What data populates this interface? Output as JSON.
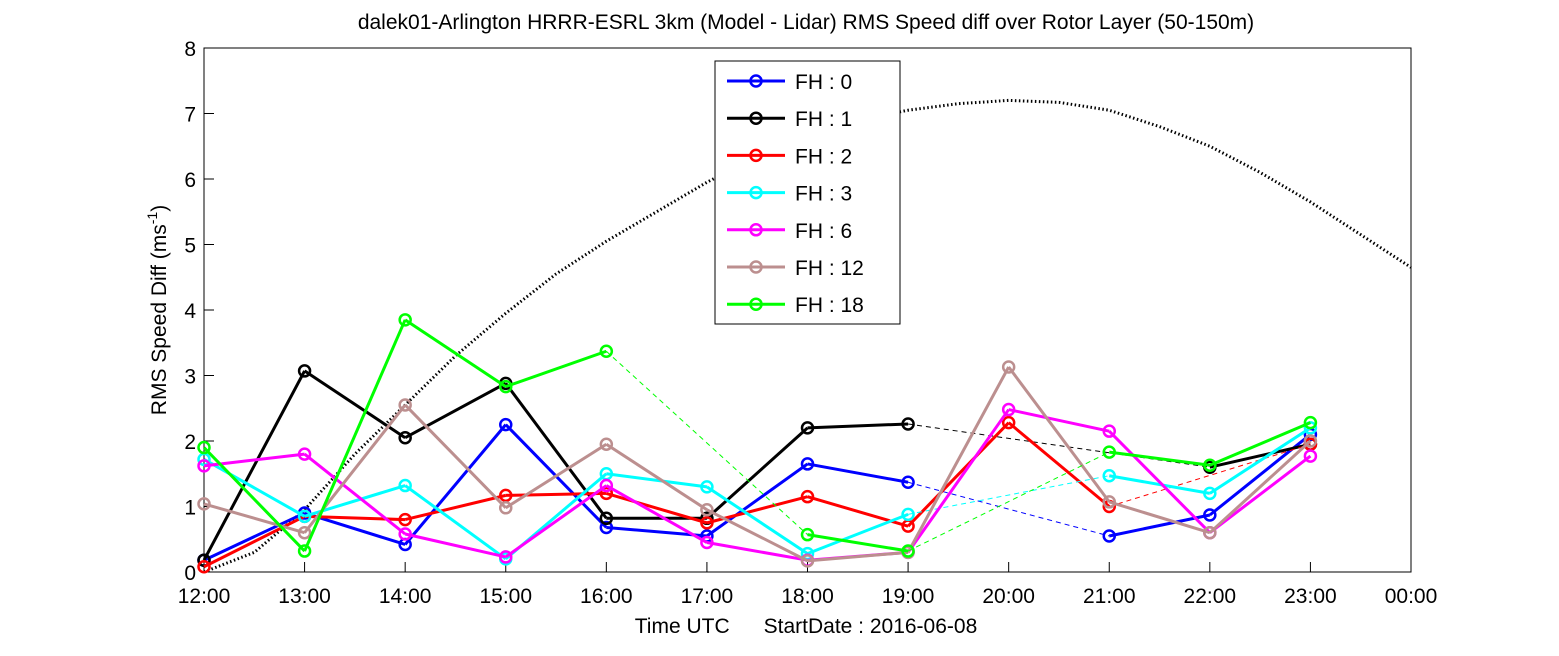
{
  "chart_data": {
    "type": "line",
    "title": "dalek01-Arlington HRRR-ESRL 3km (Model - Lidar) RMS Speed diff over Rotor Layer (50-150m)",
    "xlabel_prefix": "Time UTC",
    "xlabel_suffix": "StartDate : 2016-06-08",
    "ylabel": "RMS Speed Diff (ms",
    "ylabel_sup": "-1",
    "ylabel_close": ")",
    "ylim": [
      0,
      8
    ],
    "yticks": [
      "0",
      "1",
      "2",
      "3",
      "4",
      "5",
      "6",
      "7",
      "8"
    ],
    "xticks": [
      "12:00",
      "13:00",
      "14:00",
      "15:00",
      "16:00",
      "17:00",
      "18:00",
      "19:00",
      "20:00",
      "21:00",
      "22:00",
      "23:00",
      "00:00"
    ],
    "xlim": [
      12,
      24
    ],
    "legend_position": "top-center",
    "series": [
      {
        "name": "FH : 0",
        "color": "#0000ff",
        "values": [
          0.18,
          0.9,
          0.42,
          2.25,
          0.68,
          0.55,
          1.65,
          1.37,
          null,
          0.55,
          0.87,
          2.1
        ]
      },
      {
        "name": "FH : 1",
        "color": "#000000",
        "values": [
          0.18,
          3.07,
          2.05,
          2.88,
          0.82,
          0.82,
          2.2,
          2.26,
          null,
          null,
          1.6,
          1.95
        ]
      },
      {
        "name": "FH : 2",
        "color": "#ff0000",
        "values": [
          0.08,
          0.85,
          0.8,
          1.17,
          1.2,
          0.75,
          1.15,
          0.7,
          2.28,
          1.0,
          null,
          1.95
        ]
      },
      {
        "name": "FH : 3",
        "color": "#00ffff",
        "values": [
          1.72,
          0.85,
          1.32,
          0.2,
          1.5,
          1.3,
          0.28,
          0.88,
          null,
          1.47,
          1.2,
          2.2
        ]
      },
      {
        "name": "FH : 6",
        "color": "#ff00ff",
        "values": [
          1.62,
          1.8,
          0.58,
          0.23,
          1.32,
          0.45,
          0.18,
          0.3,
          2.48,
          2.15,
          0.6,
          1.77
        ]
      },
      {
        "name": "FH : 12",
        "color": "#bc8f8f",
        "values": [
          1.04,
          0.6,
          2.55,
          0.98,
          1.95,
          0.95,
          0.17,
          0.3,
          3.13,
          1.07,
          0.6,
          2.0
        ]
      },
      {
        "name": "FH : 18",
        "color": "#00ff00",
        "values": [
          1.9,
          0.32,
          3.85,
          2.83,
          3.37,
          null,
          0.57,
          0.32,
          null,
          1.83,
          1.63,
          2.28
        ]
      }
    ],
    "reference_curve": {
      "style": "dotted",
      "color": "#000000",
      "x": [
        12.0,
        12.5,
        13.0,
        13.5,
        14.0,
        14.5,
        15.0,
        15.5,
        16.0,
        16.5,
        17.0,
        17.5,
        18.0,
        18.5,
        19.0,
        19.5,
        20.0,
        20.5,
        21.0,
        21.5,
        22.0,
        22.5,
        23.0,
        23.5,
        24.0
      ],
      "y": [
        -0.1,
        0.3,
        0.95,
        1.8,
        2.55,
        3.3,
        3.95,
        4.55,
        5.05,
        5.5,
        5.95,
        6.35,
        6.65,
        6.9,
        7.05,
        7.15,
        7.2,
        7.17,
        7.05,
        6.8,
        6.5,
        6.1,
        5.65,
        5.15,
        4.65
      ]
    }
  }
}
